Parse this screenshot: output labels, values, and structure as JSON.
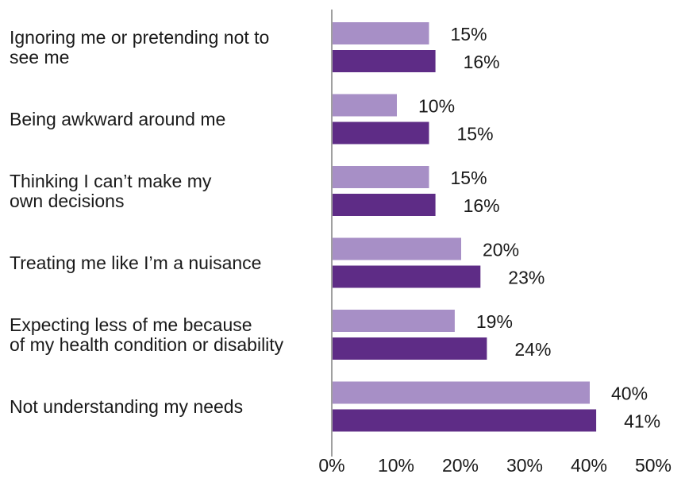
{
  "chart_data": {
    "type": "bar",
    "orientation": "horizontal",
    "categories": [
      "Ignoring me or pretending not to\nsee me",
      "Being awkward around me",
      "Thinking I can’t make my\nown decisions",
      "Treating me like I’m a nuisance",
      "Expecting less of me because\nof my health condition or disability",
      "Not understanding my needs"
    ],
    "series": [
      {
        "values": [
          15,
          10,
          15,
          20,
          19,
          40
        ],
        "color": "#a78fc6"
      },
      {
        "values": [
          16,
          15,
          16,
          23,
          24,
          41
        ],
        "color": "#5e2c86"
      }
    ],
    "data_labels": [
      [
        "15%",
        "10%",
        "15%",
        "20%",
        "19%",
        "40%"
      ],
      [
        "16%",
        "15%",
        "16%",
        "23%",
        "24%",
        "41%"
      ]
    ],
    "xlim": [
      0,
      50
    ],
    "xticks": [
      "0%",
      "10%",
      "20%",
      "30%",
      "40%",
      "50%"
    ],
    "grid": false,
    "axis_color": "#808080",
    "title": "",
    "xlabel": "",
    "ylabel": ""
  }
}
